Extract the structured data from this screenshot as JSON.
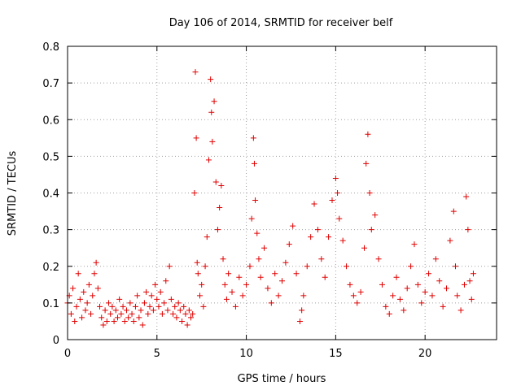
{
  "chart_data": {
    "type": "scatter",
    "title": "Day 106 of 2014, SRMTID for receiver belf",
    "xlabel": "GPS time / hours",
    "ylabel": "SRMTID / TECUs",
    "xlim": [
      0,
      24
    ],
    "ylim": [
      0,
      0.8
    ],
    "xticks": [
      0,
      5,
      10,
      15,
      20
    ],
    "xtick_labels": [
      "0",
      "5",
      "10",
      "15",
      "20"
    ],
    "yticks": [
      0,
      0.1,
      0.2,
      0.3,
      0.4,
      0.5,
      0.6,
      0.7,
      0.8
    ],
    "ytick_labels": [
      "0",
      "0.1",
      "0.2",
      "0.3",
      "0.4",
      "0.5",
      "0.6",
      "0.7",
      "0.8"
    ],
    "grid": true,
    "marker": "+",
    "color": "#e00000",
    "series": [
      {
        "name": "SRMTID",
        "points": [
          [
            0.0,
            0.1
          ],
          [
            0.1,
            0.12
          ],
          [
            0.2,
            0.07
          ],
          [
            0.3,
            0.14
          ],
          [
            0.4,
            0.05
          ],
          [
            0.5,
            0.09
          ],
          [
            0.6,
            0.18
          ],
          [
            0.7,
            0.11
          ],
          [
            0.8,
            0.06
          ],
          [
            0.9,
            0.13
          ],
          [
            1.0,
            0.08
          ],
          [
            1.1,
            0.1
          ],
          [
            1.2,
            0.15
          ],
          [
            1.3,
            0.07
          ],
          [
            1.4,
            0.12
          ],
          [
            1.5,
            0.18
          ],
          [
            1.6,
            0.21
          ],
          [
            1.7,
            0.14
          ],
          [
            1.8,
            0.09
          ],
          [
            1.9,
            0.06
          ],
          [
            2.0,
            0.04
          ],
          [
            2.1,
            0.08
          ],
          [
            2.2,
            0.05
          ],
          [
            2.3,
            0.1
          ],
          [
            2.4,
            0.07
          ],
          [
            2.5,
            0.09
          ],
          [
            2.6,
            0.05
          ],
          [
            2.7,
            0.08
          ],
          [
            2.8,
            0.06
          ],
          [
            2.9,
            0.11
          ],
          [
            3.0,
            0.07
          ],
          [
            3.1,
            0.09
          ],
          [
            3.2,
            0.05
          ],
          [
            3.3,
            0.08
          ],
          [
            3.4,
            0.06
          ],
          [
            3.5,
            0.1
          ],
          [
            3.6,
            0.07
          ],
          [
            3.7,
            0.05
          ],
          [
            3.8,
            0.09
          ],
          [
            3.9,
            0.12
          ],
          [
            4.0,
            0.06
          ],
          [
            4.1,
            0.08
          ],
          [
            4.2,
            0.04
          ],
          [
            4.3,
            0.1
          ],
          [
            4.4,
            0.13
          ],
          [
            4.5,
            0.07
          ],
          [
            4.6,
            0.09
          ],
          [
            4.7,
            0.12
          ],
          [
            4.8,
            0.08
          ],
          [
            4.9,
            0.15
          ],
          [
            5.0,
            0.11
          ],
          [
            5.1,
            0.09
          ],
          [
            5.2,
            0.13
          ],
          [
            5.3,
            0.07
          ],
          [
            5.4,
            0.1
          ],
          [
            5.5,
            0.16
          ],
          [
            5.6,
            0.08
          ],
          [
            5.7,
            0.2
          ],
          [
            5.8,
            0.11
          ],
          [
            5.9,
            0.07
          ],
          [
            6.0,
            0.09
          ],
          [
            6.1,
            0.06
          ],
          [
            6.2,
            0.1
          ],
          [
            6.3,
            0.08
          ],
          [
            6.4,
            0.05
          ],
          [
            6.5,
            0.09
          ],
          [
            6.6,
            0.07
          ],
          [
            6.7,
            0.04
          ],
          [
            6.8,
            0.08
          ],
          [
            6.9,
            0.06
          ],
          [
            7.0,
            0.07
          ],
          [
            7.1,
            0.4
          ],
          [
            7.15,
            0.73
          ],
          [
            7.2,
            0.55
          ],
          [
            7.25,
            0.21
          ],
          [
            7.3,
            0.18
          ],
          [
            7.4,
            0.12
          ],
          [
            7.5,
            0.15
          ],
          [
            7.6,
            0.09
          ],
          [
            7.7,
            0.2
          ],
          [
            7.8,
            0.28
          ],
          [
            7.9,
            0.49
          ],
          [
            8.0,
            0.71
          ],
          [
            8.05,
            0.62
          ],
          [
            8.1,
            0.54
          ],
          [
            8.2,
            0.65
          ],
          [
            8.3,
            0.43
          ],
          [
            8.4,
            0.3
          ],
          [
            8.5,
            0.36
          ],
          [
            8.6,
            0.42
          ],
          [
            8.7,
            0.22
          ],
          [
            8.8,
            0.15
          ],
          [
            8.9,
            0.11
          ],
          [
            9.0,
            0.18
          ],
          [
            9.2,
            0.13
          ],
          [
            9.4,
            0.09
          ],
          [
            9.6,
            0.17
          ],
          [
            9.8,
            0.12
          ],
          [
            10.0,
            0.15
          ],
          [
            10.2,
            0.2
          ],
          [
            10.3,
            0.33
          ],
          [
            10.4,
            0.55
          ],
          [
            10.45,
            0.48
          ],
          [
            10.5,
            0.38
          ],
          [
            10.6,
            0.29
          ],
          [
            10.7,
            0.22
          ],
          [
            10.8,
            0.17
          ],
          [
            11.0,
            0.25
          ],
          [
            11.2,
            0.14
          ],
          [
            11.4,
            0.1
          ],
          [
            11.6,
            0.18
          ],
          [
            11.8,
            0.12
          ],
          [
            12.0,
            0.16
          ],
          [
            12.2,
            0.21
          ],
          [
            12.4,
            0.26
          ],
          [
            12.6,
            0.31
          ],
          [
            12.8,
            0.18
          ],
          [
            13.0,
            0.05
          ],
          [
            13.1,
            0.08
          ],
          [
            13.2,
            0.12
          ],
          [
            13.4,
            0.2
          ],
          [
            13.6,
            0.28
          ],
          [
            13.8,
            0.37
          ],
          [
            14.0,
            0.3
          ],
          [
            14.2,
            0.22
          ],
          [
            14.4,
            0.17
          ],
          [
            14.6,
            0.28
          ],
          [
            14.8,
            0.38
          ],
          [
            15.0,
            0.44
          ],
          [
            15.1,
            0.4
          ],
          [
            15.2,
            0.33
          ],
          [
            15.4,
            0.27
          ],
          [
            15.6,
            0.2
          ],
          [
            15.8,
            0.15
          ],
          [
            16.0,
            0.12
          ],
          [
            16.2,
            0.1
          ],
          [
            16.4,
            0.13
          ],
          [
            16.6,
            0.25
          ],
          [
            16.7,
            0.48
          ],
          [
            16.8,
            0.56
          ],
          [
            16.9,
            0.4
          ],
          [
            17.0,
            0.3
          ],
          [
            17.2,
            0.34
          ],
          [
            17.4,
            0.22
          ],
          [
            17.6,
            0.15
          ],
          [
            17.8,
            0.09
          ],
          [
            18.0,
            0.07
          ],
          [
            18.2,
            0.12
          ],
          [
            18.4,
            0.17
          ],
          [
            18.6,
            0.11
          ],
          [
            18.8,
            0.08
          ],
          [
            19.0,
            0.14
          ],
          [
            19.2,
            0.2
          ],
          [
            19.4,
            0.26
          ],
          [
            19.6,
            0.15
          ],
          [
            19.8,
            0.1
          ],
          [
            20.0,
            0.13
          ],
          [
            20.2,
            0.18
          ],
          [
            20.4,
            0.12
          ],
          [
            20.6,
            0.22
          ],
          [
            20.8,
            0.16
          ],
          [
            21.0,
            0.09
          ],
          [
            21.2,
            0.14
          ],
          [
            21.4,
            0.27
          ],
          [
            21.6,
            0.35
          ],
          [
            21.7,
            0.2
          ],
          [
            21.8,
            0.12
          ],
          [
            22.0,
            0.08
          ],
          [
            22.2,
            0.15
          ],
          [
            22.3,
            0.39
          ],
          [
            22.4,
            0.3
          ],
          [
            22.5,
            0.16
          ],
          [
            22.6,
            0.11
          ],
          [
            22.7,
            0.18
          ]
        ]
      }
    ]
  }
}
